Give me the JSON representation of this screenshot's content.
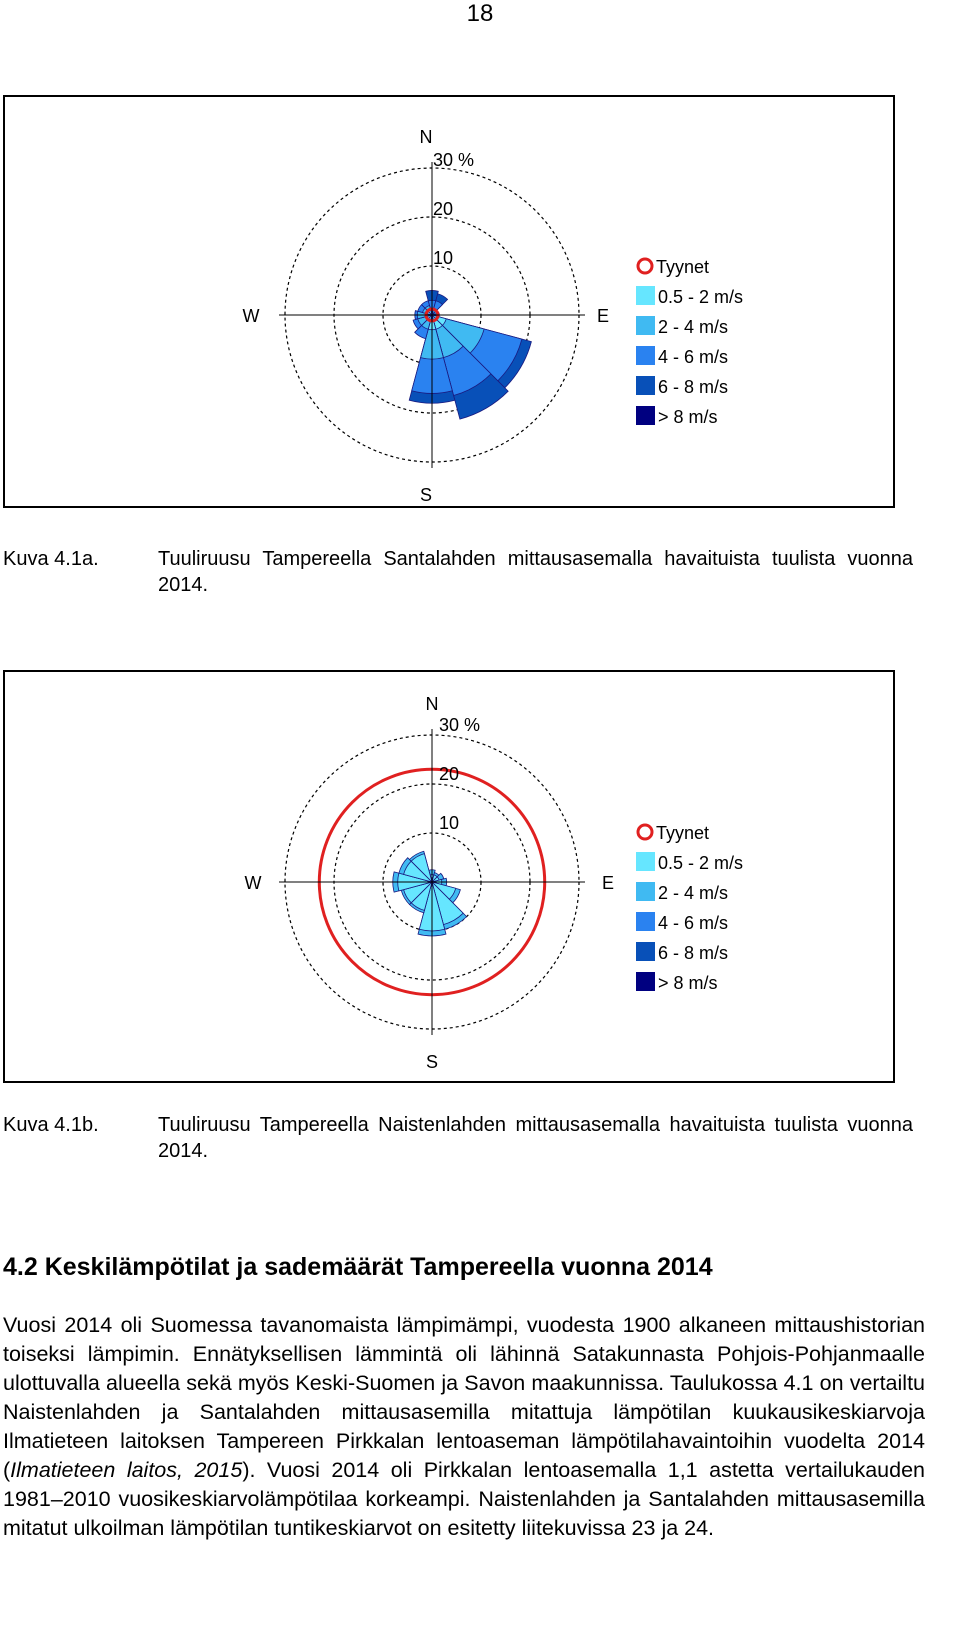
{
  "page_number": "18",
  "legend": {
    "calm_label": "Tyynet",
    "items": [
      {
        "label": "0.5 - 2 m/s",
        "color": "#66e6ff"
      },
      {
        "label": "2 - 4 m/s",
        "color": "#40baf2"
      },
      {
        "label": "4 - 6 m/s",
        "color": "#2a82f0"
      },
      {
        "label": "6 - 8 m/s",
        "color": "#0850b8"
      },
      {
        "label": "> 8 m/s",
        "color": "#000080"
      }
    ],
    "calm_color": "#e02020"
  },
  "figures": [
    {
      "id": "fig-a",
      "caption_label": "Kuva 4.1a.",
      "caption_text": "Tuuliruusu Tampereella Santalahden mittausasemalla havaituista tuulista vuonna 2014.",
      "rose": {
        "north": "N",
        "south": "S",
        "east": "E",
        "west": "W",
        "ring_labels": [
          "10",
          "20",
          "30 %"
        ],
        "calm_ring_percent": 0.5
      }
    },
    {
      "id": "fig-b",
      "caption_label": "Kuva 4.1b.",
      "caption_text": "Tuuliruusu Tampereella Naistenlahden mittausasemalla havaituista tuulista vuonna 2014.",
      "rose": {
        "north": "N",
        "south": "S",
        "east": "E",
        "west": "W",
        "ring_labels": [
          "10",
          "20",
          "30 %"
        ],
        "calm_ring_percent": 23
      }
    }
  ],
  "chart_data": [
    {
      "type": "wind-rose",
      "title": "Tuuliruusu Tampereella Santalahden mittausasemalla havaituista tuulista vuonna 2014.",
      "radial_unit": "%",
      "radial_ticks": [
        10,
        20,
        30
      ],
      "radial_max": 30,
      "calm_percent": 0.5,
      "sector_width_deg": 30,
      "speed_classes": [
        "0.5 - 2 m/s",
        "2 - 4 m/s",
        "4 - 6 m/s",
        "6 - 8 m/s",
        "> 8 m/s"
      ],
      "sectors": [
        {
          "direction_deg": 0,
          "bands": [
            0.5,
            1,
            3,
            5
          ]
        },
        {
          "direction_deg": 30,
          "bands": [
            0.5,
            1,
            3,
            4.5
          ]
        },
        {
          "direction_deg": 60,
          "bands": [
            0.5,
            1
          ]
        },
        {
          "direction_deg": 90,
          "bands": [
            0.5,
            1,
            1.5
          ]
        },
        {
          "direction_deg": 120,
          "bands": [
            3,
            11,
            19,
            21
          ]
        },
        {
          "direction_deg": 150,
          "bands": [
            3,
            9,
            17,
            22
          ]
        },
        {
          "direction_deg": 180,
          "bands": [
            3,
            9,
            16,
            18
          ]
        },
        {
          "direction_deg": 210,
          "bands": [
            1,
            3,
            5
          ]
        },
        {
          "direction_deg": 240,
          "bands": [
            1,
            3,
            4
          ]
        },
        {
          "direction_deg": 270,
          "bands": [
            1,
            3,
            3.5
          ]
        },
        {
          "direction_deg": 300,
          "bands": [
            1,
            2,
            3
          ]
        },
        {
          "direction_deg": 330,
          "bands": [
            1,
            2,
            3
          ]
        }
      ]
    },
    {
      "type": "wind-rose",
      "title": "Tuuliruusu Tampereella Naistenlahden mittausasemalla havaituista tuulista vuonna 2014.",
      "radial_unit": "%",
      "radial_ticks": [
        10,
        20,
        30
      ],
      "radial_max": 30,
      "calm_percent": 23,
      "sector_width_deg": 30,
      "speed_classes": [
        "0.5 - 2 m/s",
        "2 - 4 m/s",
        "4 - 6 m/s",
        "6 - 8 m/s",
        "> 8 m/s"
      ],
      "sectors": [
        {
          "direction_deg": 0,
          "bands": [
            1.5,
            2.5
          ]
        },
        {
          "direction_deg": 30,
          "bands": [
            1.5,
            2
          ]
        },
        {
          "direction_deg": 60,
          "bands": [
            1.5,
            2.5
          ]
        },
        {
          "direction_deg": 90,
          "bands": [
            2,
            3
          ]
        },
        {
          "direction_deg": 120,
          "bands": [
            5,
            6
          ]
        },
        {
          "direction_deg": 150,
          "bands": [
            9,
            10
          ]
        },
        {
          "direction_deg": 180,
          "bands": [
            10,
            11
          ]
        },
        {
          "direction_deg": 210,
          "bands": [
            6,
            6.5
          ]
        },
        {
          "direction_deg": 240,
          "bands": [
            6,
            6.5
          ]
        },
        {
          "direction_deg": 270,
          "bands": [
            7,
            8
          ]
        },
        {
          "direction_deg": 300,
          "bands": [
            6,
            7
          ]
        },
        {
          "direction_deg": 330,
          "bands": [
            6,
            6.5
          ]
        }
      ]
    }
  ],
  "section": {
    "heading": "4.2 Keskilämpötilat ja sademäärät Tampereella vuonna 2014",
    "paragraph_part1": "Vuosi 2014 oli Suomessa tavanomaista lämpimämpi, vuodesta 1900 alkaneen mittaushistorian toiseksi lämpimin. Ennätyksellisen lämmintä oli lähinnä Satakunnasta Pohjois-Pohjanmaalle ulottuvalla alueella sekä myös Keski-Suomen ja Savon maakunnissa. Taulukossa 4.1 on vertailtu Naistenlahden ja Santalahden mittausasemilla mitattuja lämpötilan kuukausikeskiarvoja Ilmatieteen laitoksen Tampereen Pirkkalan lentoaseman lämpötilahavaintoihin vuodelta 2014 (",
    "citation": "Ilmatieteen laitos, 2015",
    "paragraph_part2": "). Vuosi 2014 oli Pirkkalan lentoasemalla 1,1 astetta vertailukauden 1981–2010 vuosikeskiarvolämpötilaa korkeampi. Naistenlahden ja Santalahden mittausasemilla mitatut ulkoilman lämpötilan tuntikeskiarvot on esitetty liitekuvissa 23 ja 24."
  }
}
